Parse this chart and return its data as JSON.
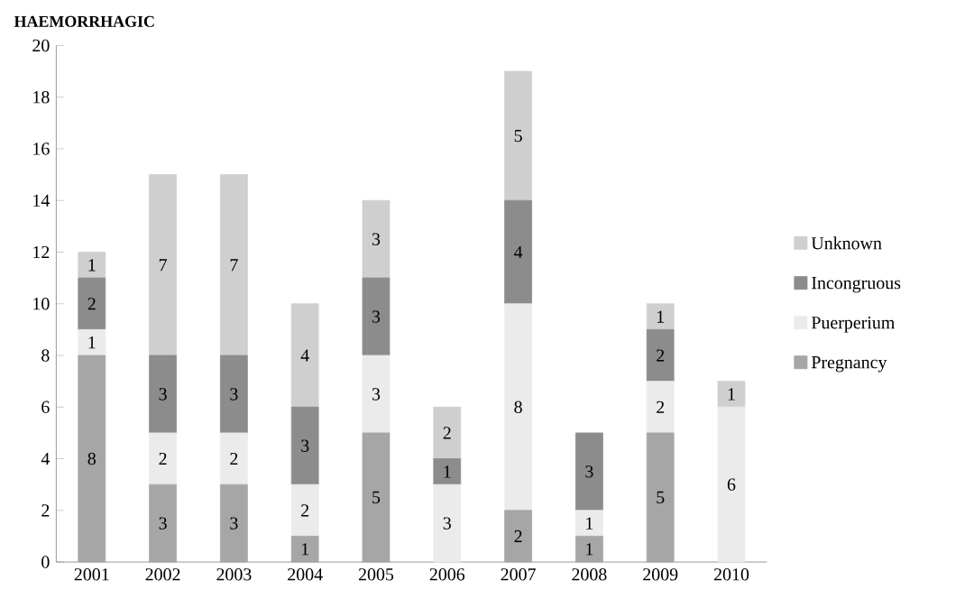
{
  "chart_data": {
    "type": "bar",
    "stacked": true,
    "title": "HAEMORRHAGIC",
    "categories": [
      "2001",
      "2002",
      "2003",
      "2004",
      "2005",
      "2006",
      "2007",
      "2008",
      "2009",
      "2010"
    ],
    "series": [
      {
        "name": "Pregnancy",
        "color": "#a6a6a6",
        "values": [
          8,
          3,
          3,
          1,
          5,
          0,
          2,
          1,
          5,
          0
        ],
        "value_labels": [
          "8",
          "3",
          "3",
          "1",
          "5",
          null,
          "2",
          "1",
          "5",
          null
        ]
      },
      {
        "name": "Puerperium",
        "color": "#ebebeb",
        "values": [
          1,
          2,
          2,
          2,
          3,
          3,
          8,
          1,
          2,
          6
        ],
        "value_labels": [
          "1",
          "2",
          "2",
          "2",
          "3",
          "3",
          "8",
          "1",
          "2",
          "6"
        ]
      },
      {
        "name": "Incongruous",
        "color": "#8c8c8c",
        "values": [
          2,
          3,
          3,
          3,
          3,
          1,
          4,
          3,
          2,
          0
        ],
        "value_labels": [
          "2",
          "3",
          "3",
          "3",
          "3",
          "1",
          "4",
          "3",
          "2",
          null
        ]
      },
      {
        "name": "Unknown",
        "color": "#cfcfcf",
        "values": [
          1,
          7,
          7,
          4,
          3,
          2,
          5,
          0,
          1,
          1
        ],
        "value_labels": [
          "1",
          "7",
          "7",
          "4",
          "3",
          "2",
          "5",
          null,
          "1",
          "1"
        ]
      }
    ],
    "ylim": [
      0,
      20
    ],
    "yticks": [
      0,
      2,
      4,
      6,
      8,
      10,
      12,
      14,
      16,
      18,
      20
    ],
    "grid": false,
    "legend": "right"
  }
}
